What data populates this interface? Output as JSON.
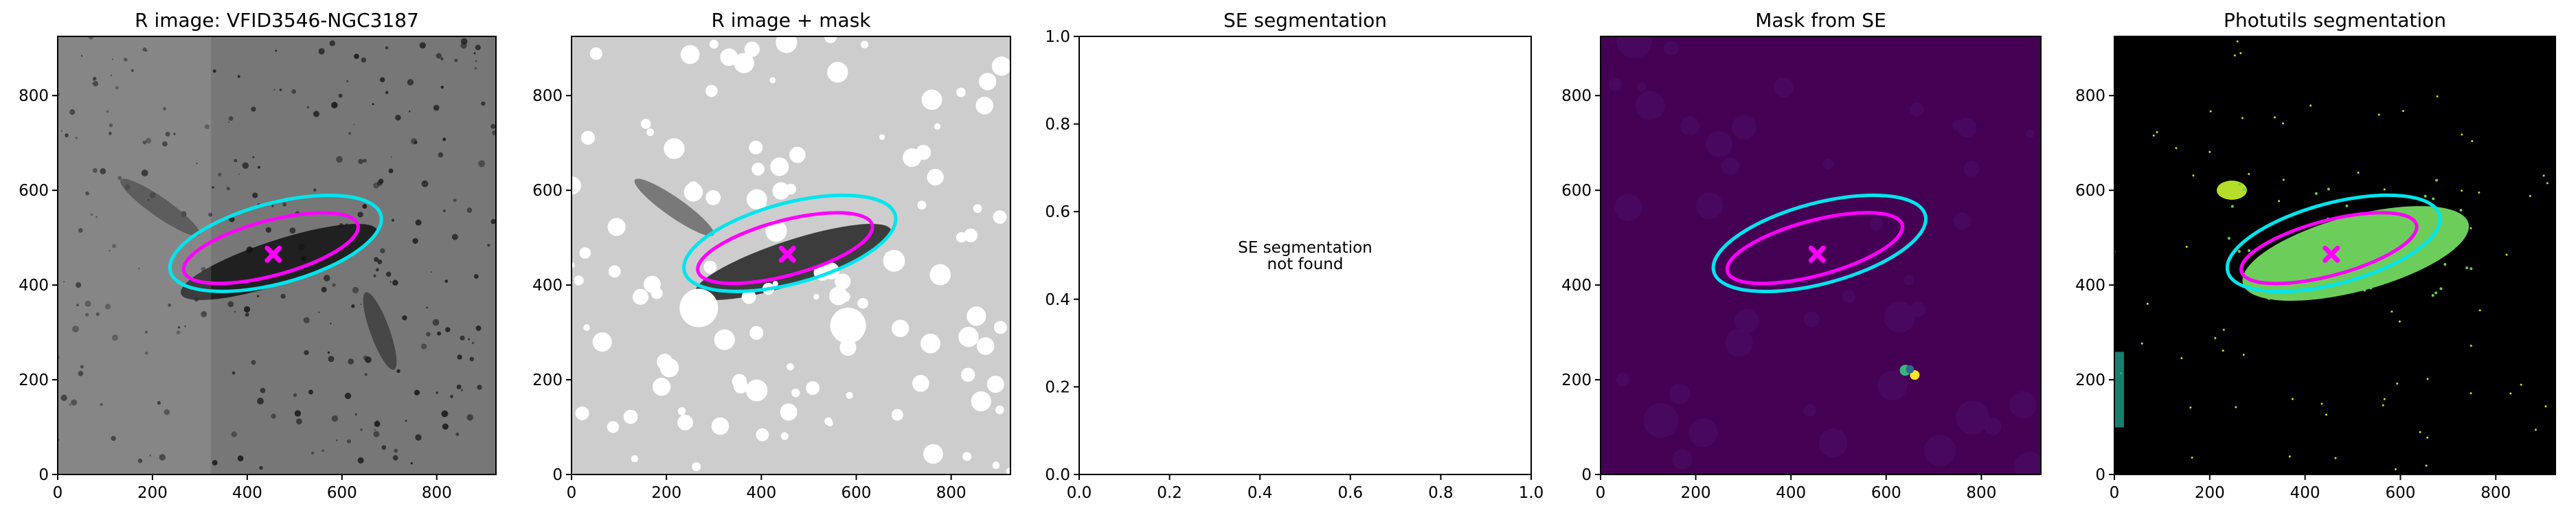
{
  "chart_data": [
    {
      "type": "image",
      "title": "R image: VFID3546-NGC3187",
      "background": "#777777",
      "xlim": [
        0,
        925
      ],
      "ylim": [
        0,
        925
      ],
      "xticks": [
        0,
        200,
        400,
        600,
        800
      ],
      "yticks": [
        0,
        200,
        400,
        600,
        800
      ],
      "ellipses": [
        {
          "cx": 460,
          "cy": 488,
          "rx": 230,
          "ry": 85,
          "angle": 15,
          "color": "#00e5ee"
        },
        {
          "cx": 450,
          "cy": 478,
          "rx": 190,
          "ry": 58,
          "angle": 15,
          "color": "#ff00ff"
        }
      ],
      "marker": {
        "x": 455,
        "y": 465,
        "color": "#ff00ff"
      }
    },
    {
      "type": "image",
      "title": "R image + mask",
      "background": "#cdcdcd",
      "xlim": [
        0,
        925
      ],
      "ylim": [
        0,
        925
      ],
      "xticks": [
        0,
        200,
        400,
        600,
        800
      ],
      "yticks": [
        0,
        200,
        400,
        600,
        800
      ],
      "ellipses": [
        {
          "cx": 460,
          "cy": 488,
          "rx": 230,
          "ry": 85,
          "angle": 15,
          "color": "#00e5ee"
        },
        {
          "cx": 450,
          "cy": 478,
          "rx": 190,
          "ry": 58,
          "angle": 15,
          "color": "#ff00ff"
        }
      ],
      "marker": {
        "x": 455,
        "y": 465,
        "color": "#ff00ff"
      }
    },
    {
      "type": "empty",
      "title": "SE segmentation",
      "annotation_lines": [
        "SE segmentation",
        "not found"
      ],
      "xlim": [
        0,
        1
      ],
      "ylim": [
        0,
        1
      ],
      "xticks": [
        {
          "value": 0,
          "label": "0.0"
        },
        0.2,
        0.4,
        0.6,
        0.8,
        {
          "value": 1,
          "label": "1.0"
        }
      ],
      "yticks": [
        {
          "value": 0,
          "label": "0.0"
        },
        0.2,
        0.4,
        0.6,
        0.8,
        {
          "value": 1,
          "label": "1.0"
        }
      ]
    },
    {
      "type": "image",
      "title": "Mask from SE",
      "background": "#440154",
      "xlim": [
        0,
        925
      ],
      "ylim": [
        0,
        925
      ],
      "xticks": [
        0,
        200,
        400,
        600,
        800
      ],
      "yticks": [
        0,
        200,
        400,
        600,
        800
      ],
      "ellipses": [
        {
          "cx": 460,
          "cy": 488,
          "rx": 230,
          "ry": 85,
          "angle": 15,
          "color": "#00e5ee"
        },
        {
          "cx": 450,
          "cy": 478,
          "rx": 190,
          "ry": 58,
          "angle": 15,
          "color": "#ff00ff"
        }
      ],
      "marker": {
        "x": 455,
        "y": 465,
        "color": "#ff00ff"
      }
    },
    {
      "type": "image",
      "title": "Photutils segmentation",
      "background": "#000000",
      "xlim": [
        0,
        925
      ],
      "ylim": [
        0,
        925
      ],
      "xticks": [
        0,
        200,
        400,
        600,
        800
      ],
      "yticks": [
        0,
        200,
        400,
        600,
        800
      ],
      "ellipses": [
        {
          "cx": 460,
          "cy": 488,
          "rx": 230,
          "ry": 85,
          "angle": 15,
          "color": "#00e5ee"
        },
        {
          "cx": 450,
          "cy": 478,
          "rx": 190,
          "ry": 58,
          "angle": 15,
          "color": "#ff00ff"
        }
      ],
      "marker": {
        "x": 455,
        "y": 465,
        "color": "#ff00ff"
      }
    }
  ]
}
